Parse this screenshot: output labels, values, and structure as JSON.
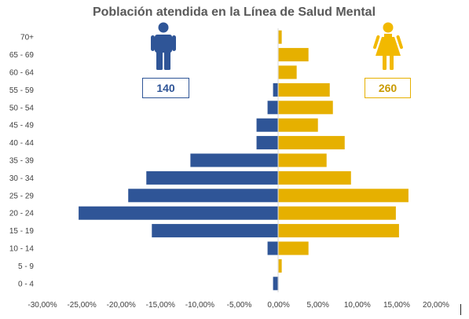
{
  "chart_data": {
    "type": "bar",
    "orientation": "horizontal",
    "title": "Población atendida en la Línea de Salud Mental",
    "categories": [
      "0 - 4",
      "5 - 9",
      "10 - 14",
      "15 - 19",
      "20 - 24",
      "25 - 29",
      "30 - 34",
      "35 - 39",
      "40 - 44",
      "45 - 49",
      "50 - 54",
      "55 - 59",
      "60 - 64",
      "65 - 69",
      "70+"
    ],
    "series": [
      {
        "values": [
          -0.7,
          0,
          -1.4,
          -16.1,
          -25.4,
          -19.1,
          -16.8,
          -11.2,
          -2.8,
          -2.8,
          -1.4,
          -0.7,
          0,
          0,
          0
        ],
        "color": "#2F5597"
      },
      {
        "values": [
          0,
          0.4,
          3.8,
          15.3,
          14.9,
          16.5,
          9.2,
          6.1,
          8.4,
          5.0,
          6.9,
          6.5,
          2.3,
          3.8,
          0.4
        ],
        "color": "#E6B000"
      }
    ],
    "xlim": [
      -30,
      20
    ],
    "xticks": [
      "-30,00%",
      "-25,00%",
      "-20,00%",
      "-15,00%",
      "-10,00%",
      "-5,00%",
      "0,00%",
      "5,00%",
      "10,00%",
      "15,00%",
      "20,00%"
    ],
    "grid": false
  },
  "male": {
    "icon": "man-icon",
    "count": "140",
    "color": "#2F5597"
  },
  "female": {
    "icon": "woman-icon",
    "count": "260",
    "color": "#E6B000"
  }
}
